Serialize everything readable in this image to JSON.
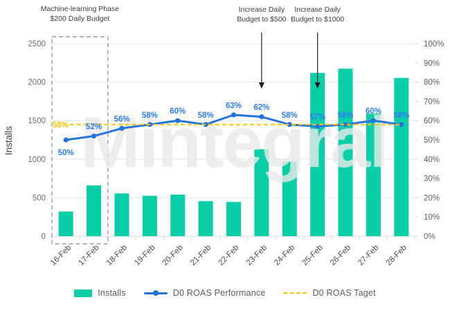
{
  "watermark": "Mintegral",
  "axes": {
    "left_title": "Installs",
    "left_ticks": [
      0,
      500,
      1000,
      1500,
      2000,
      2500
    ],
    "right_ticks": [
      "0%",
      "10%",
      "20%",
      "30%",
      "40%",
      "50%",
      "60%",
      "70%",
      "80%",
      "90%",
      "100%"
    ]
  },
  "annotations": {
    "ml_phase": {
      "line1": "Machine-learning Phase",
      "line2": "$200 Daily Budget",
      "span_categories": [
        "16-Feb",
        "17-Feb"
      ]
    },
    "budget_500": {
      "line1": "Increase Daily",
      "line2": "Budget to $500",
      "target_category": "23-Feb"
    },
    "budget_1000": {
      "line1": "Increase Daily",
      "line2": "Budget to $1000",
      "target_category": "25-Feb"
    }
  },
  "chart_data": {
    "type": "bar+line combo",
    "categories": [
      "16-Feb",
      "17-Feb",
      "18-Feb",
      "19-Feb",
      "20-Feb",
      "21-Feb",
      "22-Feb",
      "23-Feb",
      "24-Feb",
      "25-Feb",
      "26-Feb",
      "27-Feb",
      "28-Feb"
    ],
    "series": [
      {
        "name": "Installs",
        "type": "bar",
        "axis": "left",
        "color": "#08CFA8",
        "values": [
          320,
          660,
          555,
          525,
          540,
          455,
          445,
          1130,
          970,
          2120,
          2175,
          1590,
          2055
        ]
      },
      {
        "name": "D0 ROAS Performance",
        "type": "line",
        "axis": "right",
        "color": "#2272E0",
        "label_color": "#2F7DF0",
        "values": [
          50,
          52,
          56,
          58,
          60,
          58,
          63,
          62,
          58,
          57,
          58,
          60,
          58
        ],
        "value_labels": [
          "50%",
          "52%",
          "56%",
          "58%",
          "60%",
          "58%",
          "63%",
          "62%",
          "58%",
          "57%",
          "58%",
          "60%",
          "58%"
        ]
      },
      {
        "name": "D0 ROAS Taget",
        "type": "dashed-line",
        "axis": "right",
        "color": "#FFC400",
        "value": 58,
        "value_label": "58%"
      }
    ],
    "ylabel_left": "Installs",
    "ylim_left": [
      0,
      2500
    ],
    "ylim_right_pct": [
      0,
      100
    ],
    "grid": "horizontal lines every 500 installs (20%)",
    "legend_position": "bottom-center"
  }
}
